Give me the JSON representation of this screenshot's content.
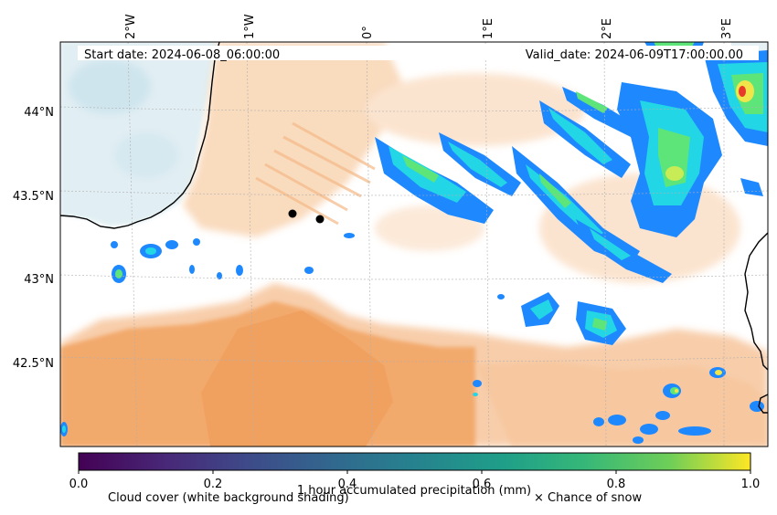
{
  "map": {
    "start_label": "Start date: 2024-06-08_06:00:00",
    "valid_label": "Valid_date: 2024-06-09T17:00:00.00",
    "lon_ticks": [
      "2°W",
      "1°W",
      "0°",
      "1°E",
      "2°E",
      "3°E"
    ],
    "lat_ticks": [
      "44°N",
      "43.5°N",
      "43°N",
      "42.5°N"
    ]
  },
  "colorbar": {
    "ticks": [
      "0.0",
      "0.2",
      "0.4",
      "0.6",
      "0.8",
      "1.0"
    ],
    "label": "1 hour accumulated precipitation (mm)",
    "colormap": "viridis"
  },
  "legend": {
    "cloud_label": "Cloud cover (white background shading)",
    "snow_label": "× Chance of snow"
  },
  "colors": {
    "sea": "#dcecf1",
    "cloud": "#f2a666",
    "cloud_light": "#f8cfa8",
    "precip_blue": "#1e88ff",
    "precip_cyan": "#22d6e6",
    "precip_green": "#5ee57a",
    "precip_yellow": "#f0e64a",
    "precip_red": "#e83a2a"
  }
}
